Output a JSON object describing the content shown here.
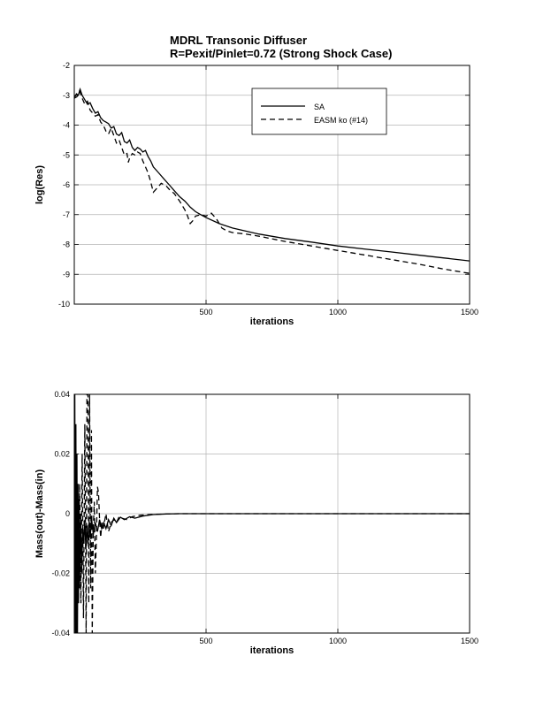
{
  "title": {
    "line1": "MDRL Transonic Diffuser",
    "line2": "R=Pexit/Pinlet=0.72 (Strong Shock Case)"
  },
  "chart_data": [
    {
      "type": "line",
      "xlabel": "iterations",
      "ylabel": "log(Res)",
      "xlim": [
        0,
        1500
      ],
      "ylim": [
        -10,
        -2
      ],
      "x_ticks": [
        500,
        1000,
        1500
      ],
      "y_ticks": [
        -10,
        -9,
        -8,
        -7,
        -6,
        -5,
        -4,
        -3,
        -2
      ],
      "grid": true,
      "legend": "top-right",
      "series": [
        {
          "name": "SA",
          "style": "solid",
          "points": [
            [
              0,
              -3.1
            ],
            [
              8,
              -2.95
            ],
            [
              15,
              -3.0
            ],
            [
              22,
              -2.8
            ],
            [
              30,
              -3.0
            ],
            [
              40,
              -3.15
            ],
            [
              50,
              -3.3
            ],
            [
              60,
              -3.25
            ],
            [
              70,
              -3.45
            ],
            [
              80,
              -3.6
            ],
            [
              90,
              -3.55
            ],
            [
              100,
              -3.75
            ],
            [
              110,
              -3.85
            ],
            [
              120,
              -3.9
            ],
            [
              130,
              -3.95
            ],
            [
              140,
              -4.1
            ],
            [
              150,
              -4.05
            ],
            [
              160,
              -4.3
            ],
            [
              170,
              -4.35
            ],
            [
              180,
              -4.25
            ],
            [
              190,
              -4.55
            ],
            [
              200,
              -4.6
            ],
            [
              210,
              -4.5
            ],
            [
              220,
              -4.75
            ],
            [
              230,
              -4.85
            ],
            [
              240,
              -4.75
            ],
            [
              250,
              -4.8
            ],
            [
              260,
              -4.9
            ],
            [
              270,
              -4.85
            ],
            [
              280,
              -5.05
            ],
            [
              290,
              -5.2
            ],
            [
              300,
              -5.4
            ],
            [
              320,
              -5.6
            ],
            [
              340,
              -5.8
            ],
            [
              360,
              -6.0
            ],
            [
              380,
              -6.2
            ],
            [
              400,
              -6.4
            ],
            [
              420,
              -6.55
            ],
            [
              440,
              -6.75
            ],
            [
              460,
              -6.9
            ],
            [
              480,
              -7.0
            ],
            [
              500,
              -7.1
            ],
            [
              550,
              -7.3
            ],
            [
              600,
              -7.45
            ],
            [
              700,
              -7.65
            ],
            [
              800,
              -7.8
            ],
            [
              900,
              -7.92
            ],
            [
              1000,
              -8.05
            ],
            [
              1100,
              -8.15
            ],
            [
              1200,
              -8.25
            ],
            [
              1300,
              -8.35
            ],
            [
              1400,
              -8.45
            ],
            [
              1500,
              -8.55
            ]
          ]
        },
        {
          "name": "EASM ko (#14)",
          "style": "dashed",
          "points": [
            [
              0,
              -3.1
            ],
            [
              10,
              -3.05
            ],
            [
              20,
              -2.85
            ],
            [
              30,
              -3.1
            ],
            [
              40,
              -3.3
            ],
            [
              50,
              -3.2
            ],
            [
              60,
              -3.5
            ],
            [
              70,
              -3.6
            ],
            [
              80,
              -3.7
            ],
            [
              90,
              -3.65
            ],
            [
              100,
              -3.9
            ],
            [
              110,
              -4.0
            ],
            [
              120,
              -4.2
            ],
            [
              130,
              -4.3
            ],
            [
              140,
              -4.1
            ],
            [
              150,
              -4.35
            ],
            [
              160,
              -4.6
            ],
            [
              170,
              -4.5
            ],
            [
              180,
              -4.75
            ],
            [
              190,
              -5.0
            ],
            [
              200,
              -4.95
            ],
            [
              205,
              -5.25
            ],
            [
              210,
              -5.1
            ],
            [
              220,
              -4.95
            ],
            [
              230,
              -5.0
            ],
            [
              240,
              -4.9
            ],
            [
              250,
              -4.95
            ],
            [
              260,
              -5.2
            ],
            [
              270,
              -5.4
            ],
            [
              280,
              -5.6
            ],
            [
              290,
              -5.9
            ],
            [
              300,
              -6.25
            ],
            [
              310,
              -6.15
            ],
            [
              320,
              -6.05
            ],
            [
              330,
              -5.95
            ],
            [
              340,
              -6.0
            ],
            [
              350,
              -6.05
            ],
            [
              360,
              -6.15
            ],
            [
              380,
              -6.3
            ],
            [
              400,
              -6.55
            ],
            [
              420,
              -6.85
            ],
            [
              430,
              -7.05
            ],
            [
              440,
              -7.3
            ],
            [
              450,
              -7.2
            ],
            [
              460,
              -7.05
            ],
            [
              480,
              -7.0
            ],
            [
              500,
              -7.05
            ],
            [
              520,
              -6.95
            ],
            [
              540,
              -7.15
            ],
            [
              560,
              -7.45
            ],
            [
              580,
              -7.55
            ],
            [
              600,
              -7.6
            ],
            [
              650,
              -7.65
            ],
            [
              700,
              -7.72
            ],
            [
              800,
              -7.9
            ],
            [
              900,
              -8.05
            ],
            [
              1000,
              -8.2
            ],
            [
              1100,
              -8.35
            ],
            [
              1200,
              -8.5
            ],
            [
              1300,
              -8.65
            ],
            [
              1400,
              -8.82
            ],
            [
              1500,
              -8.97
            ]
          ]
        }
      ],
      "legend_entries": [
        "SA",
        "EASM ko (#14)"
      ]
    },
    {
      "type": "line",
      "xlabel": "iterations",
      "ylabel": "Mass(out)-Mass(in)",
      "xlim": [
        0,
        1500
      ],
      "ylim": [
        -0.04,
        0.04
      ],
      "x_ticks": [
        500,
        1000,
        1500
      ],
      "y_ticks": [
        -0.04,
        -0.02,
        0,
        0.02,
        0.04
      ],
      "y_tick_labels": [
        "-0.04",
        "-0.02",
        "0",
        "0.02",
        "0.04"
      ],
      "grid": true,
      "series": [
        {
          "name": "SA",
          "style": "solid",
          "points": [
            [
              2,
              0.04
            ],
            [
              4,
              -0.04
            ],
            [
              6,
              0.03
            ],
            [
              8,
              -0.04
            ],
            [
              10,
              0.02
            ],
            [
              12,
              -0.04
            ],
            [
              14,
              0.01
            ],
            [
              16,
              -0.03
            ],
            [
              18,
              0.005
            ],
            [
              20,
              -0.025
            ],
            [
              24,
              0.0
            ],
            [
              28,
              -0.02
            ],
            [
              32,
              -0.005
            ],
            [
              36,
              -0.01
            ],
            [
              40,
              -0.002
            ],
            [
              44,
              -0.012
            ],
            [
              48,
              -0.004
            ],
            [
              52,
              -0.01
            ],
            [
              56,
              -0.003
            ],
            [
              60,
              -0.008
            ],
            [
              66,
              -0.002
            ],
            [
              72,
              -0.007
            ],
            [
              80,
              -0.003
            ],
            [
              88,
              -0.006
            ],
            [
              96,
              -0.002
            ],
            [
              104,
              -0.005
            ],
            [
              112,
              -0.003
            ],
            [
              120,
              -0.005
            ],
            [
              130,
              -0.002
            ],
            [
              140,
              -0.004
            ],
            [
              150,
              -0.0015
            ],
            [
              160,
              -0.003
            ],
            [
              175,
              -0.0012
            ],
            [
              190,
              -0.002
            ],
            [
              210,
              -0.001
            ],
            [
              230,
              -0.0015
            ],
            [
              260,
              -0.0008
            ],
            [
              300,
              -0.0003
            ],
            [
              350,
              -0.0001
            ],
            [
              400,
              0
            ],
            [
              1500,
              0
            ]
          ]
        },
        {
          "name": "EASM ko (#14)",
          "style": "dashed",
          "points": [
            [
              5,
              -0.01
            ],
            [
              10,
              0.005
            ],
            [
              15,
              -0.02
            ],
            [
              20,
              0.01
            ],
            [
              25,
              -0.03
            ],
            [
              30,
              0.02
            ],
            [
              35,
              -0.035
            ],
            [
              40,
              0.03
            ],
            [
              45,
              -0.04
            ],
            [
              48,
              0.04
            ],
            [
              52,
              0.04
            ],
            [
              55,
              -0.03
            ],
            [
              58,
              0.04
            ],
            [
              62,
              -0.025
            ],
            [
              65,
              0.028
            ],
            [
              68,
              -0.04
            ],
            [
              72,
              -0.005
            ],
            [
              76,
              0.004
            ],
            [
              80,
              -0.02
            ],
            [
              84,
              -0.008
            ],
            [
              88,
              0.009
            ],
            [
              92,
              0.007
            ],
            [
              96,
              -0.002
            ],
            [
              100,
              -0.008
            ],
            [
              105,
              -0.003
            ],
            [
              110,
              -0.005
            ],
            [
              120,
              0.0
            ],
            [
              130,
              -0.006
            ],
            [
              140,
              -0.003
            ],
            [
              150,
              -0.002
            ],
            [
              160,
              -0.003
            ],
            [
              170,
              -0.001
            ],
            [
              180,
              -0.0015
            ],
            [
              200,
              -0.002
            ],
            [
              220,
              -0.001
            ],
            [
              250,
              -0.0005
            ],
            [
              300,
              -0.0002
            ],
            [
              400,
              0
            ],
            [
              1500,
              0
            ]
          ]
        }
      ]
    }
  ]
}
